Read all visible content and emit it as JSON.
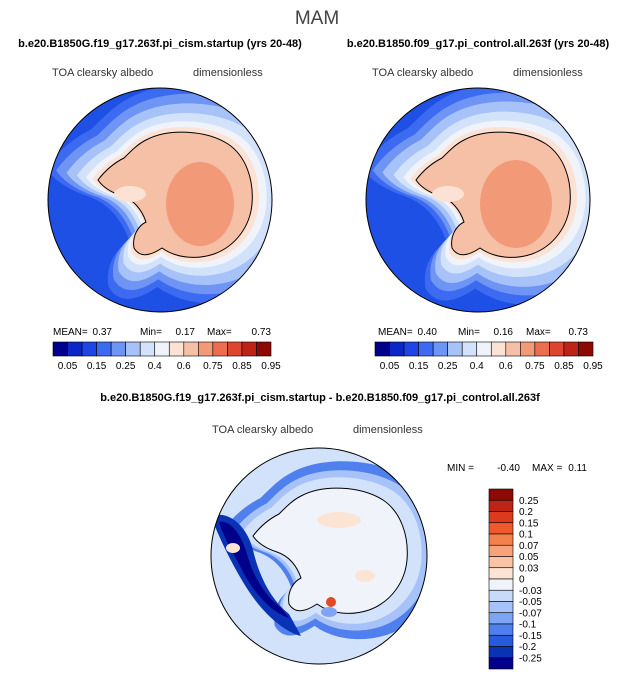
{
  "season": "MAM",
  "chart_data": [
    {
      "type": "heatmap",
      "projection": "south-polar-stereographic",
      "title": "b.e20.B1850G.f19_g17.263f.pi_cism.startup (yrs 20-48)",
      "field": "TOA clearsky albedo",
      "units": "dimensionless",
      "stats": {
        "mean_label": "MEAN=",
        "mean": "0.37",
        "min_label": "Min=",
        "min": "0.17",
        "max_label": "Max=",
        "max": "0.73"
      },
      "colorbar": {
        "labels": [
          "0.05",
          "0.15",
          "0.25",
          "0.4",
          "0.6",
          "0.75",
          "0.85",
          "0.95"
        ],
        "colors": [
          "#00008B",
          "#0A28C8",
          "#1E46E6",
          "#3C6AF0",
          "#6E94F4",
          "#A6C2F8",
          "#D2E2FA",
          "#F0F4FA",
          "#FBE2D4",
          "#F6C0A6",
          "#F29A78",
          "#EC6E4E",
          "#DC4630",
          "#BE2416",
          "#8C0A00"
        ]
      }
    },
    {
      "type": "heatmap",
      "projection": "south-polar-stereographic",
      "title": "b.e20.B1850.f09_g17.pi_control.all.263f (yrs 20-48)",
      "field": "TOA clearsky albedo",
      "units": "dimensionless",
      "stats": {
        "mean_label": "MEAN=",
        "mean": "0.40",
        "min_label": "Min=",
        "min": "0.16",
        "max_label": "Max=",
        "max": "0.73"
      },
      "colorbar": {
        "labels": [
          "0.05",
          "0.15",
          "0.25",
          "0.4",
          "0.6",
          "0.75",
          "0.85",
          "0.95"
        ],
        "colors": [
          "#00008B",
          "#0A28C8",
          "#1E46E6",
          "#3C6AF0",
          "#6E94F4",
          "#A6C2F8",
          "#D2E2FA",
          "#F0F4FA",
          "#FBE2D4",
          "#F6C0A6",
          "#F29A78",
          "#EC6E4E",
          "#DC4630",
          "#BE2416",
          "#8C0A00"
        ]
      }
    },
    {
      "type": "heatmap",
      "projection": "south-polar-stereographic",
      "title": "b.e20.B1850G.f19_g17.263f.pi_cism.startup - b.e20.B1850.f09_g17.pi_control.all.263f",
      "field": "TOA clearsky albedo",
      "units": "dimensionless",
      "stats": {
        "min_label": "MIN =",
        "min": "-0.40",
        "max_label": "MAX =",
        "max": "0.11"
      },
      "colorbar": {
        "labels": [
          "0.25",
          "0.2",
          "0.15",
          "0.1",
          "0.07",
          "0.05",
          "0.03",
          "0",
          "-0.03",
          "-0.05",
          "-0.07",
          "-0.1",
          "-0.15",
          "-0.2",
          "-0.25"
        ],
        "colors": [
          "#8C0A00",
          "#BE2416",
          "#DC3A1E",
          "#EE5A2E",
          "#F4804E",
          "#F6A27A",
          "#F9C4A6",
          "#FBE4D4",
          "#F0F4FA",
          "#C8DAF8",
          "#A6C2F8",
          "#7EA4F4",
          "#5080EE",
          "#285ADC",
          "#0A32B4",
          "#00008B"
        ]
      }
    }
  ]
}
